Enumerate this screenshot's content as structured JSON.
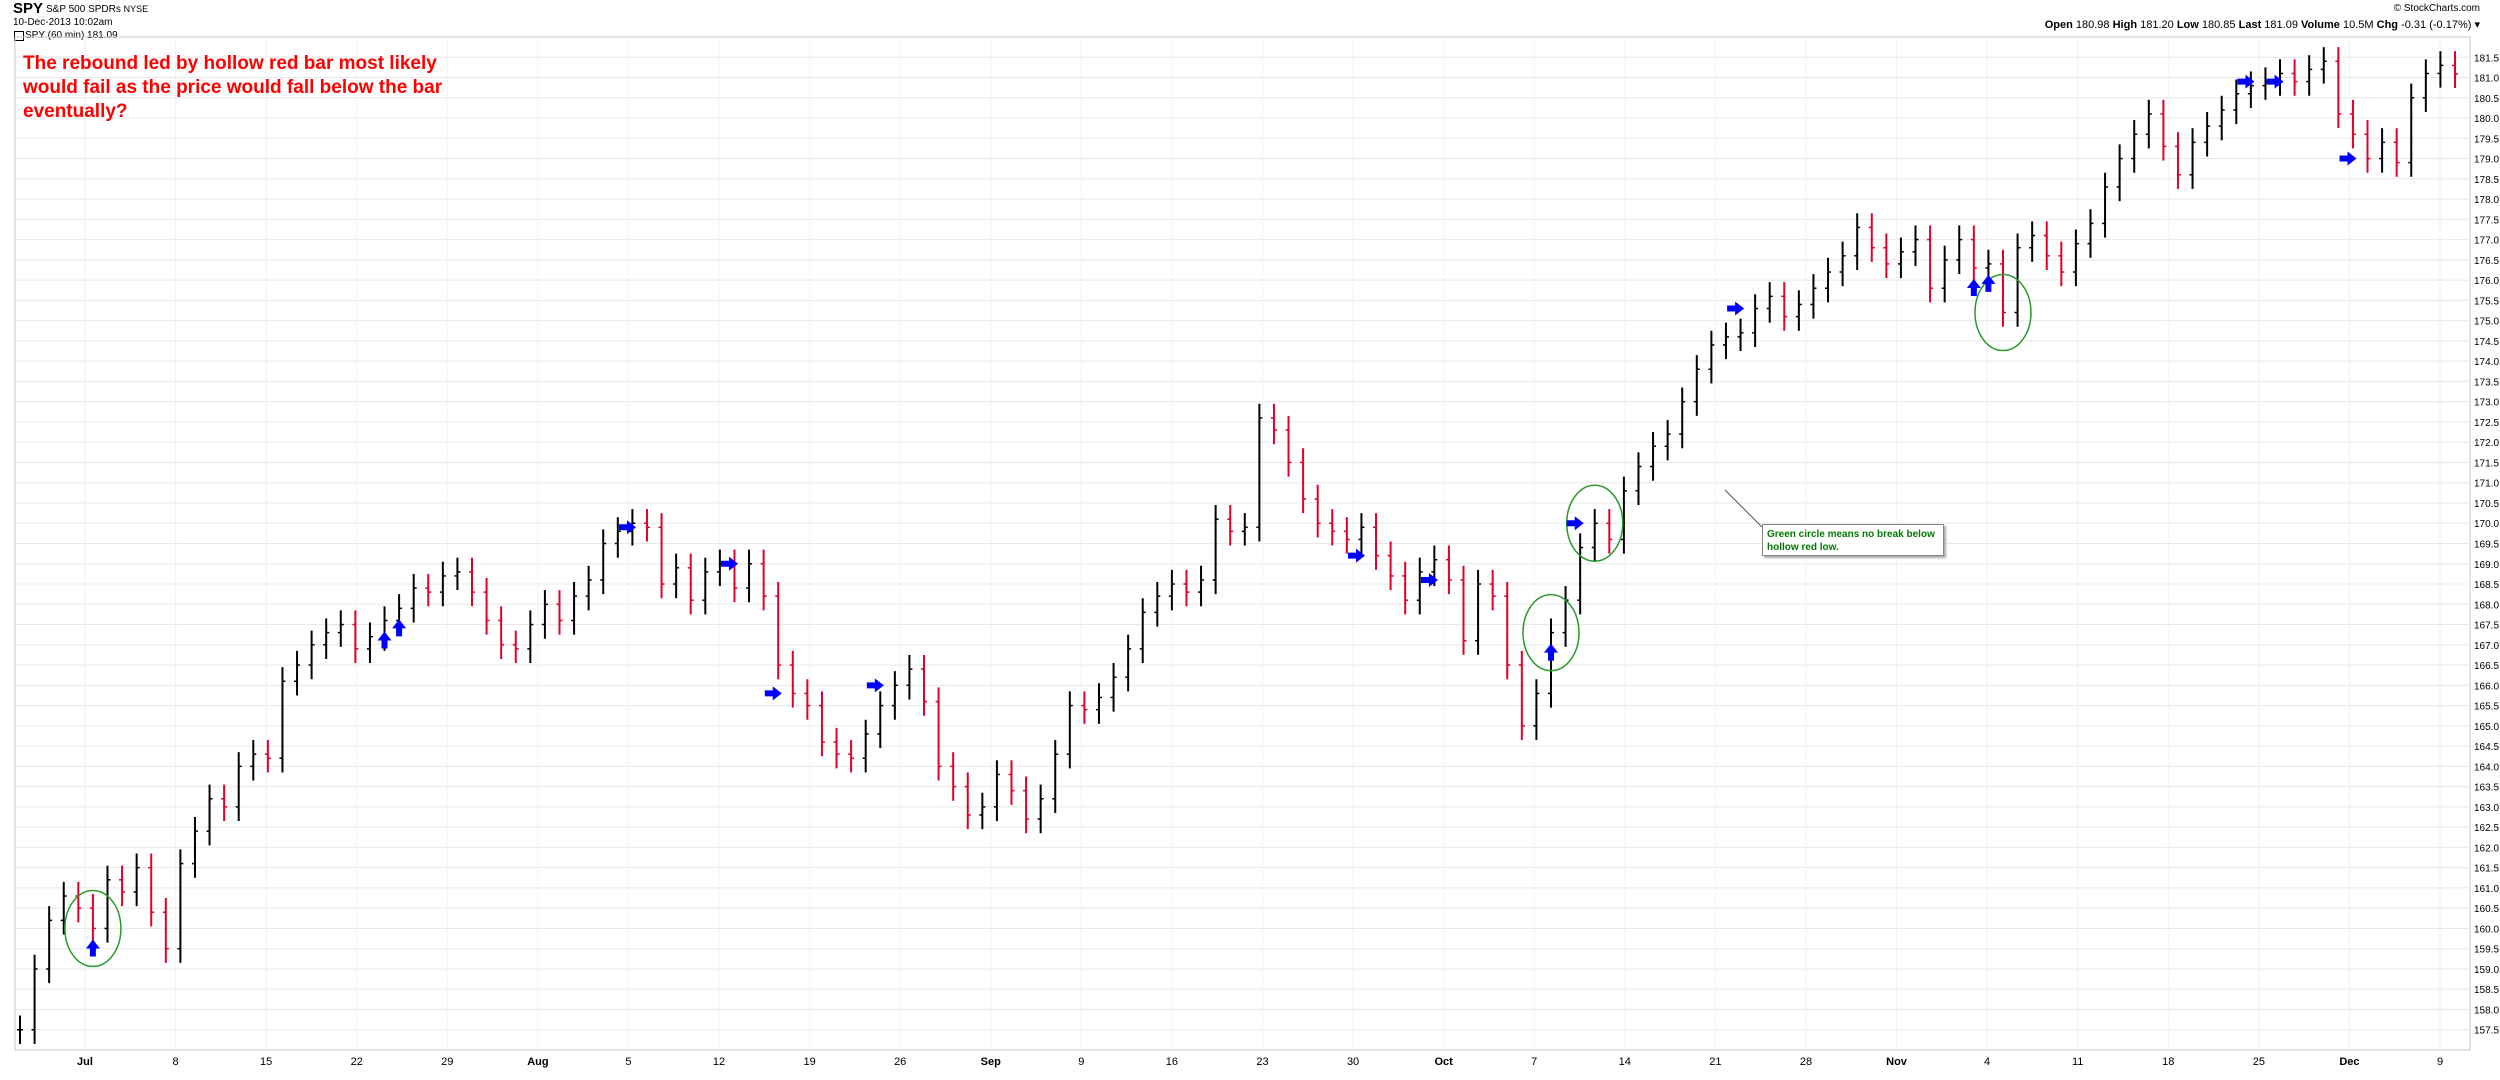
{
  "header": {
    "symbol": "SPY",
    "name": "S&P 500 SPDRs",
    "exchange": "NYSE",
    "date": "10-Dec-2013 10:02am",
    "series_label": "SPY (60 min) 181.09",
    "watermark": "© StockCharts.com",
    "stats": {
      "open_label": "Open",
      "open": "180.98",
      "high_label": "High",
      "high": "181.20",
      "low_label": "Low",
      "low": "180.85",
      "last_label": "Last",
      "last": "181.09",
      "volume_label": "Volume",
      "volume": "10.5M",
      "chg_label": "Chg",
      "chg": "-0.31 (-0.17%)"
    }
  },
  "annotations": {
    "caption": "The rebound led by hollow red bar most likely would fail as the price would fall below the bar eventually?",
    "note": "Green circle means no break below hollow red low."
  },
  "colors": {
    "up": "#000000",
    "down": "#e0002a",
    "grid": "#e8e8e8",
    "caption": "#ff0000",
    "note": "#007a00",
    "arrow": "#0000ff",
    "circle": "#2a9a2a"
  },
  "chart_data": {
    "type": "line",
    "scale": "linear",
    "ylim": [
      157.0,
      182.0
    ],
    "ylabels": [
      "157.5",
      "158.0",
      "158.5",
      "159.0",
      "159.5",
      "160.0",
      "160.5",
      "161.0",
      "161.5",
      "162.0",
      "162.5",
      "163.0",
      "163.5",
      "164.0",
      "164.5",
      "165.0",
      "165.5",
      "166.0",
      "166.5",
      "167.0",
      "167.5",
      "168.0",
      "168.5",
      "169.0",
      "169.5",
      "170.0",
      "170.5",
      "171.0",
      "171.5",
      "172.0",
      "172.5",
      "173.0",
      "173.5",
      "174.0",
      "174.5",
      "175.0",
      "175.5",
      "176.0",
      "176.5",
      "177.0",
      "177.5",
      "178.0",
      "178.5",
      "179.0",
      "179.5",
      "180.0",
      "180.5",
      "181.0",
      "181.5"
    ],
    "xlabels": [
      "Jul",
      "8",
      "15",
      "22",
      "29",
      "Aug",
      "5",
      "12",
      "19",
      "26",
      "Sep",
      "9",
      "16",
      "23",
      "30",
      "Oct",
      "7",
      "14",
      "21",
      "28",
      "Nov",
      "4",
      "11",
      "18",
      "25",
      "Dec",
      "9"
    ],
    "bold_xlabels": [
      "Jul",
      "Aug",
      "Sep",
      "Oct",
      "Nov",
      "Dec"
    ],
    "series": [
      {
        "values": [
          157.5,
          159.0,
          160.2,
          160.8,
          160.5,
          160.0,
          161.2,
          160.9,
          161.5,
          160.4,
          159.5,
          161.6,
          162.4,
          163.2,
          163.0,
          164.0,
          164.3,
          164.2,
          166.1,
          166.5,
          167.0,
          167.3,
          167.5,
          166.9,
          167.2,
          167.6,
          167.9,
          168.4,
          168.3,
          168.7,
          168.8,
          168.3,
          167.6,
          167.0,
          166.9,
          167.5,
          168.0,
          167.6,
          168.2,
          168.6,
          169.5,
          169.8,
          170.0,
          169.9,
          168.5,
          168.9,
          168.1,
          168.8,
          169.0,
          168.4,
          169.0,
          168.2,
          166.5,
          165.8,
          165.5,
          164.6,
          164.3,
          164.2,
          164.8,
          165.5,
          166.0,
          166.4,
          165.6,
          164.0,
          163.5,
          162.8,
          163.0,
          163.8,
          163.4,
          162.7,
          163.2,
          164.3,
          165.5,
          165.4,
          165.7,
          166.2,
          166.9,
          167.8,
          168.2,
          168.5,
          168.3,
          168.6,
          170.1,
          169.8,
          169.9,
          172.6,
          172.3,
          171.5,
          170.6,
          170.0,
          169.8,
          169.6,
          169.9,
          169.2,
          168.7,
          168.1,
          168.8,
          169.1,
          168.6,
          167.1,
          168.5,
          168.2,
          166.5,
          165.0,
          165.8,
          167.3,
          168.1,
          169.4,
          170.0,
          169.6,
          170.8,
          171.4,
          171.9,
          172.2,
          173.0,
          173.8,
          174.4,
          174.6,
          174.7,
          175.3,
          175.6,
          175.1,
          175.4,
          175.8,
          176.2,
          176.6,
          177.3,
          176.8,
          176.4,
          176.7,
          177.0,
          175.8,
          176.5,
          177.0,
          176.3,
          176.4,
          175.2,
          176.8,
          177.1,
          176.6,
          176.2,
          176.9,
          177.4,
          178.3,
          179.0,
          179.6,
          180.1,
          179.3,
          178.6,
          179.4,
          179.8,
          180.2,
          180.6,
          180.8,
          180.9,
          181.1,
          180.9,
          181.2,
          181.4,
          180.1,
          179.6,
          179.0,
          179.4,
          178.9,
          180.5,
          181.1,
          181.3,
          181.09
        ]
      }
    ],
    "markers": {
      "arrows_up": [
        "Jul 5",
        "Jul 25",
        "Jul 26",
        "Oct 14",
        "Nov 12",
        "Nov 13"
      ],
      "arrows_right": [
        "Aug 12",
        "Aug 19",
        "Aug 22",
        "Aug 29",
        "Oct 2",
        "Oct 7",
        "Oct 17",
        "Oct 28",
        "Dec 2",
        "Dec 4",
        "Dec 9"
      ],
      "circles": [
        "Jul 5",
        "Oct 14",
        "Oct 17",
        "Nov 14"
      ]
    }
  }
}
